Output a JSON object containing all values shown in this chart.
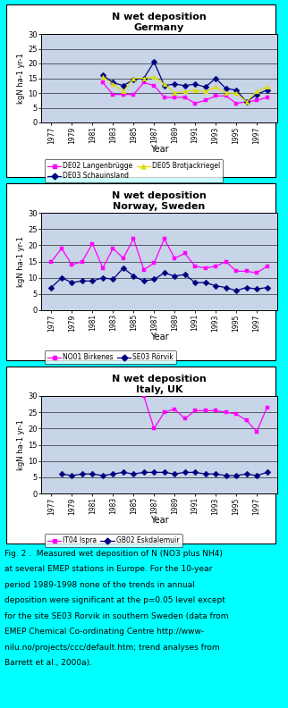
{
  "fig_bg": "#00FFFF",
  "plot_bg": "#C8D4E8",
  "germany": {
    "title1": "N wet deposition",
    "title2": "Germany",
    "ylabel": "kgN ha-1 yr-1",
    "xlabel": "Year",
    "ylim": [
      0,
      30
    ],
    "yticks": [
      0,
      5,
      10,
      15,
      20,
      25,
      30
    ],
    "xticks": [
      1977,
      1979,
      1981,
      1983,
      1985,
      1987,
      1989,
      1991,
      1993,
      1995,
      1997
    ],
    "xlim": [
      1976,
      1999
    ],
    "series": {
      "DE02": {
        "label": "DE02 Langenbrügge",
        "color": "#FF00FF",
        "marker": "s",
        "x": [
          1982,
          1983,
          1984,
          1985,
          1986,
          1987,
          1988,
          1989,
          1990,
          1991,
          1992,
          1993,
          1994,
          1995,
          1996,
          1997,
          1998
        ],
        "y": [
          13.5,
          9.5,
          9.5,
          9.5,
          13.5,
          12.5,
          8.5,
          8.5,
          8.5,
          6.5,
          7.5,
          9.0,
          9.0,
          6.5,
          7.0,
          7.5,
          8.5
        ]
      },
      "DE03": {
        "label": "DE03 Schauinsland",
        "color": "#000080",
        "marker": "D",
        "x": [
          1982,
          1983,
          1984,
          1985,
          1986,
          1987,
          1988,
          1989,
          1990,
          1991,
          1992,
          1993,
          1994,
          1995,
          1996,
          1997,
          1998
        ],
        "y": [
          16.0,
          13.5,
          12.5,
          14.5,
          15.0,
          20.5,
          12.5,
          13.0,
          12.5,
          13.0,
          12.0,
          15.0,
          11.5,
          11.0,
          7.0,
          9.5,
          11.0
        ]
      },
      "DE05": {
        "label": "DE05 Brotjackriegel",
        "color": "#DDDD00",
        "marker": "^",
        "x": [
          1982,
          1983,
          1984,
          1985,
          1986,
          1987,
          1988,
          1989,
          1990,
          1991,
          1992,
          1993,
          1994,
          1995,
          1996,
          1997,
          1998
        ],
        "y": [
          15.5,
          13.0,
          10.5,
          15.0,
          15.0,
          15.5,
          13.0,
          10.0,
          10.5,
          11.0,
          10.5,
          12.0,
          10.0,
          10.0,
          7.0,
          10.5,
          12.0
        ]
      }
    },
    "legend_ncol": 2
  },
  "norway": {
    "title1": "N wet deposition",
    "title2": "Norway, Sweden",
    "ylabel": "kgN ha-1 yr-1",
    "xlabel": "Year",
    "ylim": [
      0,
      30
    ],
    "yticks": [
      0,
      5,
      10,
      15,
      20,
      25,
      30
    ],
    "xticks": [
      1977,
      1979,
      1981,
      1983,
      1985,
      1987,
      1989,
      1991,
      1993,
      1995,
      1997
    ],
    "xlim": [
      1976,
      1999
    ],
    "series": {
      "NO01": {
        "label": "NO01 Birkenes",
        "color": "#FF00FF",
        "marker": "s",
        "x": [
          1977,
          1978,
          1979,
          1980,
          1981,
          1982,
          1983,
          1984,
          1985,
          1986,
          1987,
          1988,
          1989,
          1990,
          1991,
          1992,
          1993,
          1994,
          1995,
          1996,
          1997,
          1998
        ],
        "y": [
          15.0,
          19.0,
          14.0,
          15.0,
          20.5,
          13.0,
          19.0,
          16.0,
          22.0,
          12.5,
          14.5,
          22.0,
          16.0,
          17.5,
          13.5,
          13.0,
          13.5,
          15.0,
          12.0,
          12.0,
          11.5,
          13.5
        ]
      },
      "SE03": {
        "label": "SE03 Rörvik",
        "color": "#000080",
        "marker": "D",
        "x": [
          1977,
          1978,
          1979,
          1980,
          1981,
          1982,
          1983,
          1984,
          1985,
          1986,
          1987,
          1988,
          1989,
          1990,
          1991,
          1992,
          1993,
          1994,
          1995,
          1996,
          1997,
          1998
        ],
        "y": [
          7.0,
          10.0,
          8.5,
          9.0,
          9.0,
          10.0,
          9.5,
          13.0,
          10.5,
          9.0,
          9.5,
          11.5,
          10.5,
          11.0,
          8.5,
          8.5,
          7.5,
          7.0,
          6.0,
          7.0,
          6.5,
          7.0
        ]
      }
    },
    "legend_ncol": 2
  },
  "italy": {
    "title1": "N wet deposition",
    "title2": "Italy, UK",
    "ylabel": "kgN ha-1 yr-1",
    "xlabel": "Year",
    "ylim": [
      0,
      30
    ],
    "yticks": [
      0,
      5,
      10,
      15,
      20,
      25,
      30
    ],
    "xticks": [
      1977,
      1979,
      1981,
      1983,
      1985,
      1987,
      1989,
      1991,
      1993,
      1995,
      1997
    ],
    "xlim": [
      1976,
      1999
    ],
    "series": {
      "IT04": {
        "label": "IT04 Ispra",
        "color": "#FF00FF",
        "marker": "s",
        "x": [
          1986,
          1987,
          1988,
          1989,
          1990,
          1991,
          1992,
          1993,
          1994,
          1995,
          1996,
          1997,
          1998
        ],
        "y": [
          30.0,
          20.0,
          25.0,
          26.0,
          23.0,
          25.5,
          25.5,
          25.5,
          25.0,
          24.5,
          22.5,
          19.0,
          26.5
        ]
      },
      "GB02": {
        "label": "GB02 Eskdalemuir",
        "color": "#000080",
        "marker": "D",
        "x": [
          1978,
          1979,
          1980,
          1981,
          1982,
          1983,
          1984,
          1985,
          1986,
          1987,
          1988,
          1989,
          1990,
          1991,
          1992,
          1993,
          1994,
          1995,
          1996,
          1997,
          1998
        ],
        "y": [
          6.0,
          5.5,
          6.0,
          6.0,
          5.5,
          6.0,
          6.5,
          6.0,
          6.5,
          6.5,
          6.5,
          6.0,
          6.5,
          6.5,
          6.0,
          6.0,
          5.5,
          5.5,
          6.0,
          5.5,
          6.5
        ]
      }
    },
    "legend_ncol": 2
  },
  "caption_bold": "Fig. 2 .",
  "caption_normal": "  Measured wet deposition of N (NO3 plus NH4) at several EMEP stations in Europe. For the 10-year period 1989-1998 none of the trends in annual deposition were significant at the p=0.05 level except for the site SE03 Rorvik in southern Sweden (data from EMEP Chemical Co-ordinating Centre http://www-nilu.no/projects/ccc/default.htm; trend analyses from Barrett et al., 2000a)."
}
